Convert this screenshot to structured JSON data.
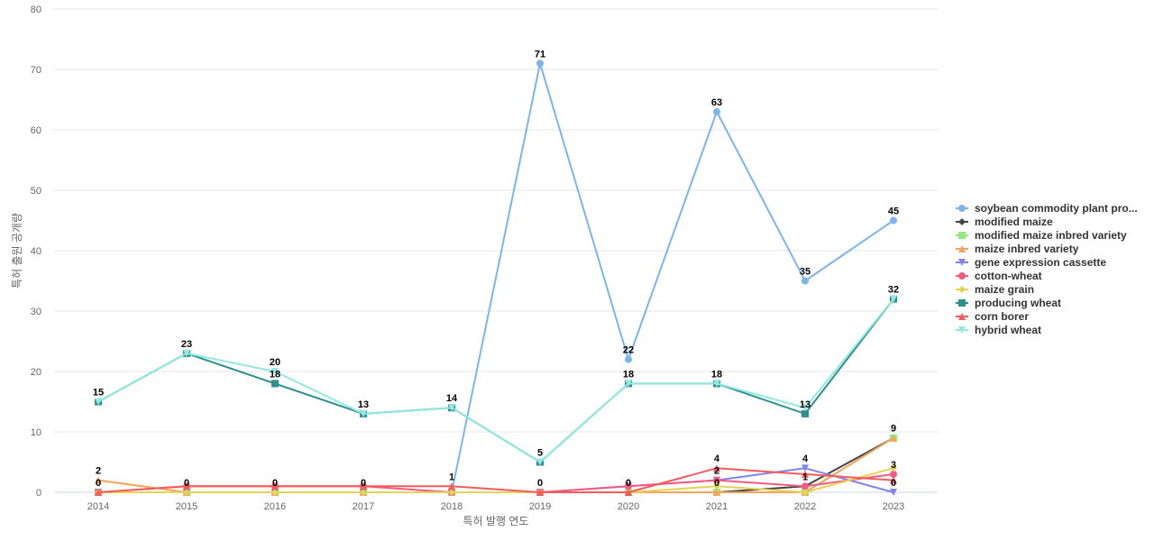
{
  "chart_data": {
    "type": "line",
    "title": "",
    "xlabel": "특허 발행 연도",
    "ylabel": "특허 출원 공개량",
    "ylim": [
      0,
      80
    ],
    "y_ticks": [
      "0",
      "10",
      "20",
      "30",
      "40",
      "50",
      "60",
      "70",
      "80"
    ],
    "categories": [
      "2014",
      "2015",
      "2016",
      "2017",
      "2018",
      "2019",
      "2020",
      "2021",
      "2022",
      "2023"
    ],
    "grid": true,
    "legend_position": "right",
    "series": [
      {
        "name": "soybean commodity plant pro...",
        "color": "#7cb5ec",
        "marker": "circle",
        "values": [
          0,
          0,
          0,
          0,
          0,
          71,
          22,
          63,
          35,
          45
        ]
      },
      {
        "name": "modified maize",
        "color": "#434348",
        "marker": "diamond",
        "values": [
          0,
          0,
          0,
          0,
          0,
          0,
          0,
          0,
          1,
          9
        ]
      },
      {
        "name": "modified maize inbred variety",
        "color": "#90ed7d",
        "marker": "square",
        "values": [
          0,
          0,
          0,
          0,
          0,
          0,
          0,
          0,
          0,
          9
        ]
      },
      {
        "name": "maize inbred variety",
        "color": "#f7a35c",
        "marker": "triangle",
        "values": [
          2,
          0,
          0,
          0,
          0,
          0,
          0,
          0,
          0,
          9
        ]
      },
      {
        "name": "gene expression cassette",
        "color": "#8085e9",
        "marker": "triangle-down",
        "values": [
          0,
          0,
          0,
          0,
          0,
          0,
          1,
          2,
          4,
          0
        ]
      },
      {
        "name": "cotton-wheat",
        "color": "#f15c80",
        "marker": "circle",
        "values": [
          0,
          1,
          1,
          1,
          0,
          0,
          1,
          2,
          1,
          3
        ]
      },
      {
        "name": "maize grain",
        "color": "#e4d354",
        "marker": "diamond",
        "values": [
          0,
          0,
          0,
          0,
          0,
          0,
          0,
          1,
          0,
          4
        ]
      },
      {
        "name": "producing wheat",
        "color": "#2b908f",
        "marker": "square",
        "values": [
          15,
          23,
          18,
          13,
          14,
          5,
          18,
          18,
          13,
          32
        ]
      },
      {
        "name": "corn borer",
        "color": "#f45b5b",
        "marker": "triangle",
        "values": [
          0,
          1,
          1,
          1,
          1,
          0,
          0,
          4,
          3,
          2
        ]
      },
      {
        "name": "hybrid wheat",
        "color": "#91e8e1",
        "marker": "triangle-down",
        "values": [
          15,
          23,
          20,
          13,
          14,
          5,
          18,
          18,
          14,
          32
        ]
      }
    ],
    "data_labels": [
      {
        "category": "2014",
        "value": 15,
        "text": "15"
      },
      {
        "category": "2014",
        "value": 2,
        "text": "2"
      },
      {
        "category": "2014",
        "value": 0,
        "text": "0"
      },
      {
        "category": "2015",
        "value": 23,
        "text": "23"
      },
      {
        "category": "2015",
        "value": 0,
        "text": "0"
      },
      {
        "category": "2016",
        "value": 20,
        "text": "20"
      },
      {
        "category": "2016",
        "value": 18,
        "text": "18"
      },
      {
        "category": "2016",
        "value": 0,
        "text": "0"
      },
      {
        "category": "2017",
        "value": 13,
        "text": "13"
      },
      {
        "category": "2017",
        "value": 0,
        "text": "0"
      },
      {
        "category": "2018",
        "value": 14,
        "text": "14"
      },
      {
        "category": "2018",
        "value": 1,
        "text": "1"
      },
      {
        "category": "2019",
        "value": 71,
        "text": "71"
      },
      {
        "category": "2019",
        "value": 5,
        "text": "5"
      },
      {
        "category": "2019",
        "value": 0,
        "text": "0"
      },
      {
        "category": "2020",
        "value": 22,
        "text": "22"
      },
      {
        "category": "2020",
        "value": 18,
        "text": "18"
      },
      {
        "category": "2020",
        "value": 0,
        "text": "0"
      },
      {
        "category": "2021",
        "value": 63,
        "text": "63"
      },
      {
        "category": "2021",
        "value": 18,
        "text": "18"
      },
      {
        "category": "2021",
        "value": 4,
        "text": "4"
      },
      {
        "category": "2021",
        "value": 2,
        "text": "2"
      },
      {
        "category": "2021",
        "value": 0,
        "text": "0"
      },
      {
        "category": "2022",
        "value": 35,
        "text": "35"
      },
      {
        "category": "2022",
        "value": 13,
        "text": "13"
      },
      {
        "category": "2022",
        "value": 4,
        "text": "4"
      },
      {
        "category": "2022",
        "value": 1,
        "text": "1"
      },
      {
        "category": "2023",
        "value": 45,
        "text": "45"
      },
      {
        "category": "2023",
        "value": 32,
        "text": "32"
      },
      {
        "category": "2023",
        "value": 9,
        "text": "9"
      },
      {
        "category": "2023",
        "value": 3,
        "text": "3"
      },
      {
        "category": "2023",
        "value": 0,
        "text": "0"
      }
    ]
  }
}
